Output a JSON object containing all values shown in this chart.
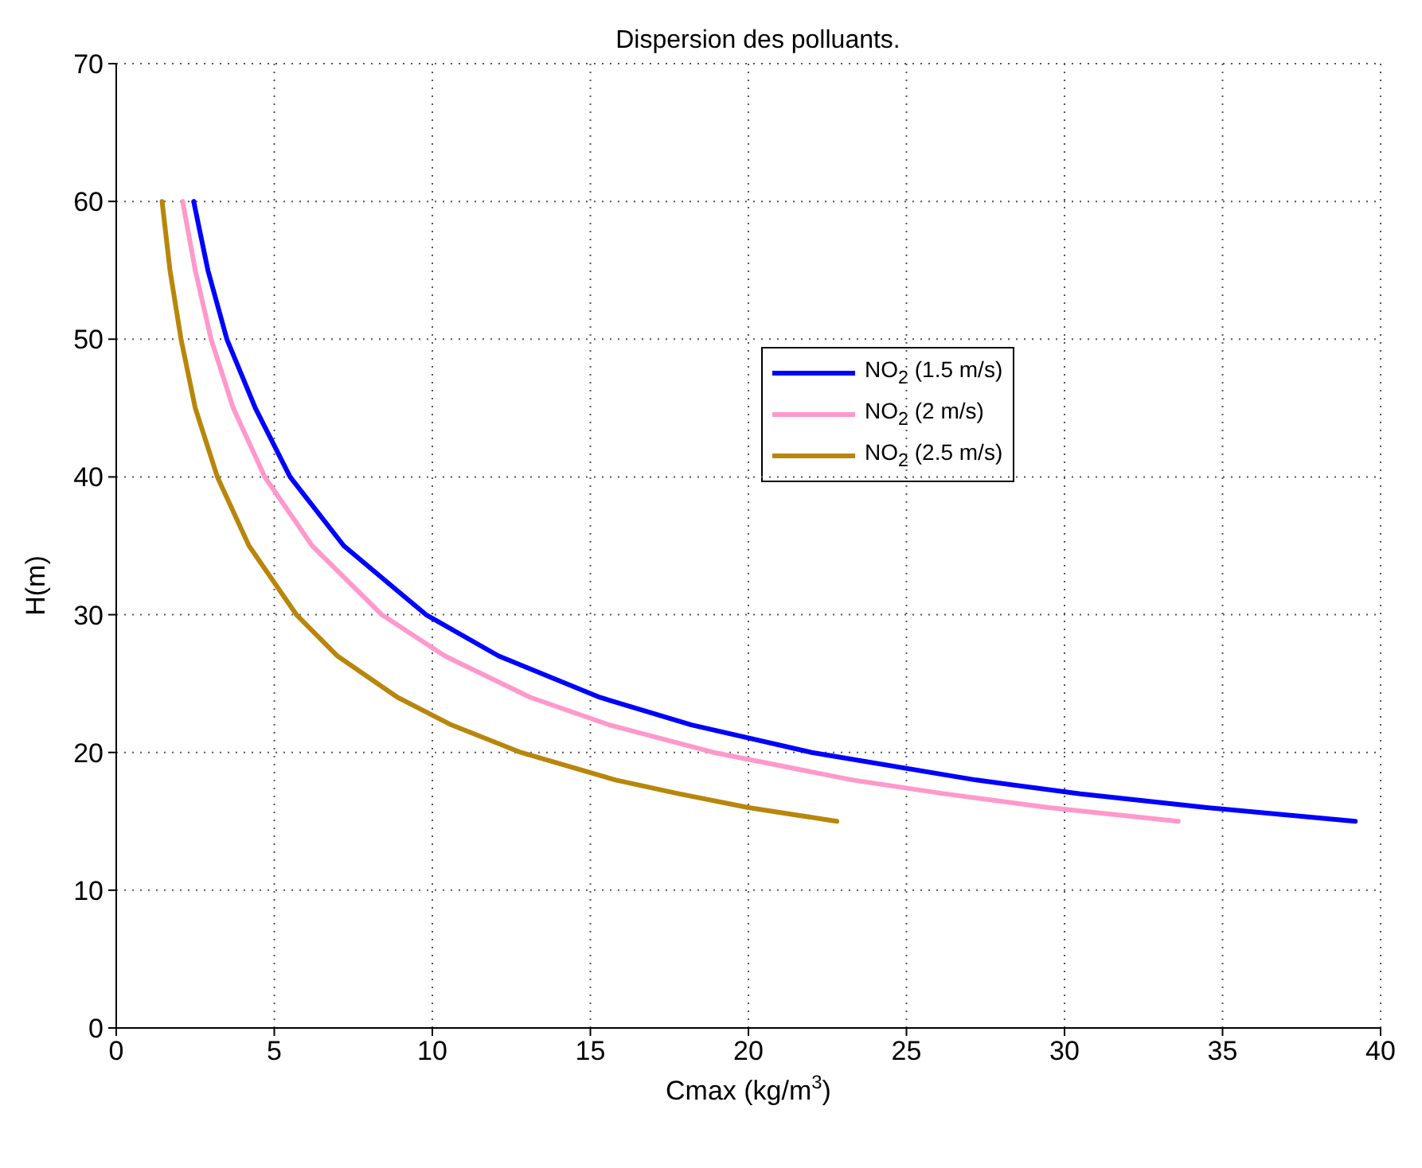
{
  "chart_data": {
    "type": "line",
    "title": "Dispersion des polluants.",
    "xlabel": "Cmax (kg/m$^{3}$)",
    "ylabel": "H(m)",
    "xlim": [
      0,
      40
    ],
    "xticks": [
      0,
      5,
      10,
      15,
      20,
      25,
      30,
      35,
      40
    ],
    "ylim": [
      0,
      70
    ],
    "yticks": [
      0,
      10,
      20,
      30,
      40,
      50,
      60,
      70
    ],
    "grid": true,
    "legend": "right",
    "line_style": "solid",
    "series": [
      {
        "name": "NO$_{2}$ (1.5 m/s)",
        "color": "#0000ff",
        "x": [
          2.45,
          2.9,
          3.5,
          4.4,
          5.5,
          7.2,
          9.8,
          12.1,
          15.3,
          18.2,
          22,
          27.2,
          30.5,
          34.5,
          39.2
        ],
        "values": [
          60,
          55,
          50,
          45,
          40,
          35,
          30,
          27,
          24,
          22,
          20,
          18,
          17,
          16,
          15
        ]
      },
      {
        "name": "NO$_{2}$ (2 m/s)",
        "color": "#ff99cc",
        "x": [
          2.1,
          2.5,
          3,
          3.7,
          4.7,
          6.2,
          8.4,
          10.4,
          13.1,
          15.6,
          18.9,
          23.3,
          26.2,
          29.5,
          33.6
        ],
        "values": [
          60,
          55,
          50,
          45,
          40,
          35,
          30,
          27,
          24,
          22,
          20,
          18,
          17,
          16,
          15
        ]
      },
      {
        "name": "NO$_{2}$ (2.5 m/s)",
        "color": "#b8860b",
        "x": [
          1.45,
          1.7,
          2.05,
          2.5,
          3.2,
          4.2,
          5.7,
          7,
          8.9,
          10.6,
          12.8,
          15.8,
          17.8,
          20,
          22.8
        ],
        "values": [
          60,
          55,
          50,
          45,
          40,
          35,
          30,
          27,
          24,
          22,
          20,
          18,
          17,
          16,
          15
        ]
      }
    ]
  }
}
